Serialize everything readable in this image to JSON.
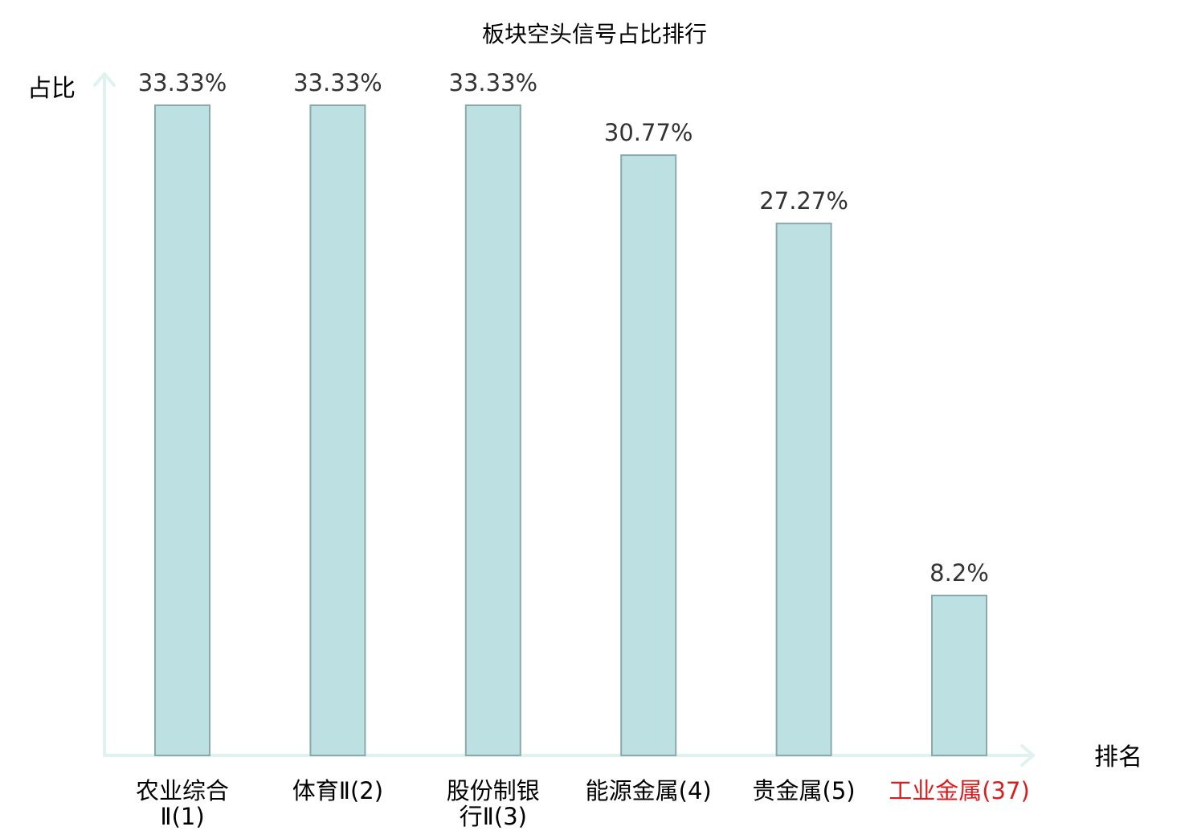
{
  "chart_data": {
    "type": "bar",
    "title": "板块空头信号占比排行",
    "ylabel": "占比",
    "xlabel": "排名",
    "ylim": [
      0,
      33.33
    ],
    "grid": false,
    "legend": "none",
    "categories": [
      {
        "lines": [
          "农业综合",
          "Ⅱ(1)"
        ],
        "highlight": false
      },
      {
        "lines": [
          "体育Ⅱ(2)"
        ],
        "highlight": false
      },
      {
        "lines": [
          "股份制银",
          "行Ⅱ(3)"
        ],
        "highlight": false
      },
      {
        "lines": [
          "能源金属(4)"
        ],
        "highlight": false
      },
      {
        "lines": [
          "贵金属(5)"
        ],
        "highlight": false
      },
      {
        "lines": [
          "工业金属(37)"
        ],
        "highlight": true
      }
    ],
    "values": [
      33.33,
      33.33,
      33.33,
      30.77,
      27.27,
      8.2
    ],
    "value_labels": [
      "33.33%",
      "33.33%",
      "33.33%",
      "30.77%",
      "27.27%",
      "8.2%"
    ]
  },
  "colors": {
    "bar_fill": "#bde0e3",
    "bar_stroke": "#8aa9ab",
    "axis": "#e0f2ef",
    "text": "#000000",
    "value_text": "#333333",
    "highlight_text": "#d81e1e"
  }
}
